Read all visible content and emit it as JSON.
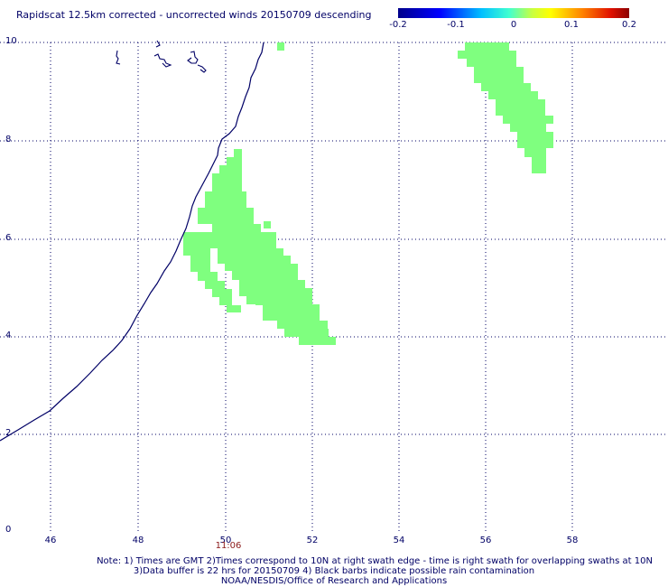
{
  "title": "Rapidscat 12.5km corrected - uncorrected winds 20150709 descending",
  "colorbar": {
    "labels": [
      "-0.2",
      "-0.1",
      "0",
      "0.1",
      "0.2"
    ],
    "min": -0.2,
    "max": 0.2
  },
  "axes": {
    "y_ticks": [
      "10",
      "8",
      "6",
      "4",
      "2",
      "0"
    ],
    "x_ticks": [
      "46",
      "48",
      "50",
      "52",
      "54",
      "56",
      "58"
    ],
    "lon_range": [
      45,
      60
    ],
    "lat_range": [
      0,
      10
    ],
    "grid": "dotted"
  },
  "time_label": "11:06",
  "notes": {
    "line1": "Note: 1) Times are GMT 2)Times correspond to 10N at right swath edge - time is right swath for overlapping swaths at 10N",
    "line2": "3)Data buffer is 22 hrs for 20150709 4) Black barbs indicate possible rain contamination",
    "line3": "NOAA/NESDIS/Office of Research and Applications"
  },
  "colors": {
    "wind_difference": "#7fff7f",
    "coastline": "#000066",
    "grid": "#000066"
  },
  "map_features": [
    "coastline",
    "islands",
    "wind-difference-swath"
  ]
}
